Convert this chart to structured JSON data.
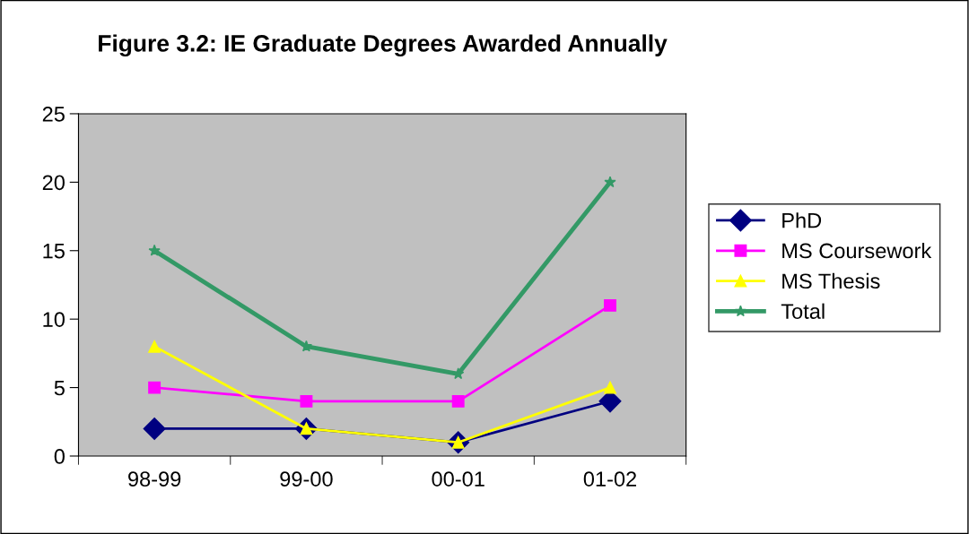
{
  "chart_data": {
    "type": "line",
    "title": "Figure 3.2: IE Graduate Degrees Awarded Annually",
    "categories": [
      "98-99",
      "99-00",
      "00-01",
      "01-02"
    ],
    "series": [
      {
        "name": "PhD",
        "color": "#000080",
        "marker": "diamond",
        "values": [
          2,
          2,
          1,
          4
        ]
      },
      {
        "name": "MS Coursework",
        "color": "#ff00ff",
        "marker": "square",
        "values": [
          5,
          4,
          4,
          11
        ]
      },
      {
        "name": "MS Thesis",
        "color": "#ffff00",
        "marker": "triangle",
        "values": [
          8,
          2,
          1,
          5
        ]
      },
      {
        "name": "Total",
        "color": "#339966",
        "marker": "star",
        "values": [
          15,
          8,
          6,
          20
        ]
      }
    ],
    "ylim": [
      0,
      25
    ],
    "yticks": [
      0,
      5,
      10,
      15,
      20,
      25
    ],
    "grid": false,
    "legend": "right",
    "line_style": "solid"
  }
}
